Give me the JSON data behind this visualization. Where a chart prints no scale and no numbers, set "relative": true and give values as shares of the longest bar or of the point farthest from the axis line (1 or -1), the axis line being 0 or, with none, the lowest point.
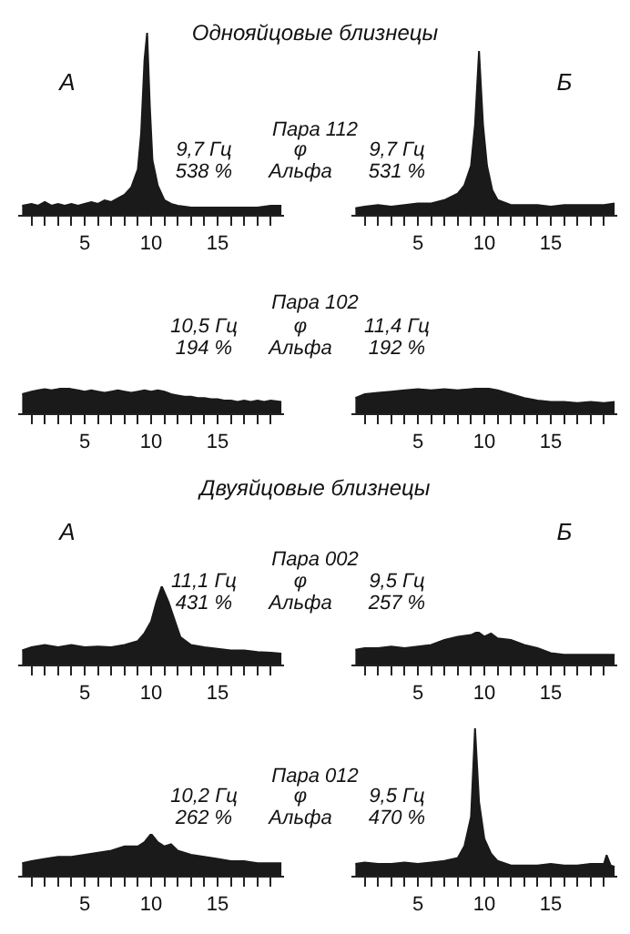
{
  "chart_data": [
    {
      "type": "other",
      "title": "Однояйцовые близнецы"
    },
    {
      "type": "area",
      "title": "А",
      "subtitle": "Пара 112",
      "annotations": [
        "9,7 Гц",
        "538 %",
        "φ",
        "Альфа"
      ],
      "relative": true,
      "color": "#1a1a1a",
      "xlim": [
        0,
        20
      ],
      "xticks": [
        {
          "value": 1,
          "label": null
        },
        {
          "value": 2,
          "label": null
        },
        {
          "value": 3,
          "label": null
        },
        {
          "value": 4,
          "label": null
        },
        5,
        {
          "value": 6,
          "label": null
        },
        {
          "value": 7,
          "label": null
        },
        {
          "value": 8,
          "label": null
        },
        {
          "value": 9,
          "label": null
        },
        10,
        {
          "value": 11,
          "label": null
        },
        {
          "value": 12,
          "label": null
        },
        {
          "value": 13,
          "label": null
        },
        {
          "value": 14,
          "label": null
        },
        15,
        {
          "value": 16,
          "label": null
        },
        {
          "value": 17,
          "label": null
        },
        {
          "value": 18,
          "label": null
        },
        {
          "value": 19,
          "label": null
        }
      ],
      "x": [
        0.3,
        1,
        1.5,
        2,
        2.5,
        3,
        3.5,
        4,
        4.5,
        5,
        5.5,
        6,
        6.5,
        7,
        7.5,
        8,
        8.5,
        9,
        9.25,
        9.5,
        9.7,
        9.9,
        10.1,
        10.5,
        11,
        11.5,
        12,
        13,
        14,
        15,
        16,
        17,
        18,
        19,
        19.8
      ],
      "values": [
        0.05,
        0.06,
        0.05,
        0.07,
        0.05,
        0.06,
        0.05,
        0.06,
        0.05,
        0.06,
        0.07,
        0.06,
        0.08,
        0.07,
        0.09,
        0.11,
        0.15,
        0.25,
        0.45,
        0.85,
        1,
        0.6,
        0.3,
        0.16,
        0.08,
        0.06,
        0.05,
        0.04,
        0.04,
        0.04,
        0.04,
        0.04,
        0.04,
        0.05,
        0.05
      ]
    },
    {
      "type": "area",
      "title": "Б",
      "annotations": [
        "9,7 Гц",
        "531 %"
      ],
      "relative": true,
      "color": "#1a1a1a",
      "xlim": [
        0,
        20
      ],
      "xticks": [
        {
          "value": 1,
          "label": null
        },
        {
          "value": 2,
          "label": null
        },
        {
          "value": 3,
          "label": null
        },
        {
          "value": 4,
          "label": null
        },
        5,
        {
          "value": 6,
          "label": null
        },
        {
          "value": 7,
          "label": null
        },
        {
          "value": 8,
          "label": null
        },
        {
          "value": 9,
          "label": null
        },
        10,
        {
          "value": 11,
          "label": null
        },
        {
          "value": 12,
          "label": null
        },
        {
          "value": 13,
          "label": null
        },
        {
          "value": 14,
          "label": null
        },
        15,
        {
          "value": 16,
          "label": null
        },
        {
          "value": 17,
          "label": null
        },
        {
          "value": 18,
          "label": null
        },
        {
          "value": 19,
          "label": null
        }
      ],
      "x": [
        0.3,
        1,
        2,
        3,
        4,
        5,
        6,
        7,
        8,
        8.5,
        9,
        9.3,
        9.6,
        9.9,
        10.2,
        10.6,
        11,
        12,
        13,
        14,
        15,
        16,
        17,
        18,
        19,
        19.8
      ],
      "values": [
        0.04,
        0.05,
        0.06,
        0.05,
        0.06,
        0.07,
        0.07,
        0.09,
        0.13,
        0.18,
        0.3,
        0.55,
        1,
        0.55,
        0.3,
        0.15,
        0.09,
        0.06,
        0.06,
        0.06,
        0.05,
        0.06,
        0.06,
        0.06,
        0.06,
        0.07
      ]
    },
    {
      "type": "area",
      "subtitle": "Пара 102",
      "annotations": [
        "10,5 Гц",
        "194 %",
        "φ",
        "Альфа"
      ],
      "relative": true,
      "color": "#1a1a1a",
      "xlim": [
        0,
        20
      ],
      "xticks": [
        {
          "value": 1,
          "label": null
        },
        {
          "value": 2,
          "label": null
        },
        {
          "value": 3,
          "label": null
        },
        {
          "value": 4,
          "label": null
        },
        5,
        {
          "value": 6,
          "label": null
        },
        {
          "value": 7,
          "label": null
        },
        {
          "value": 8,
          "label": null
        },
        {
          "value": 9,
          "label": null
        },
        10,
        {
          "value": 11,
          "label": null
        },
        {
          "value": 12,
          "label": null
        },
        {
          "value": 13,
          "label": null
        },
        {
          "value": 14,
          "label": null
        },
        15,
        {
          "value": 16,
          "label": null
        },
        {
          "value": 17,
          "label": null
        },
        {
          "value": 18,
          "label": null
        },
        {
          "value": 19,
          "label": null
        }
      ],
      "x": [
        0.3,
        1,
        1.5,
        2,
        2.5,
        3,
        3.5,
        4,
        4.5,
        5,
        5.5,
        6,
        6.5,
        7,
        7.5,
        8,
        8.5,
        9,
        9.5,
        10,
        10.5,
        11,
        11.5,
        12,
        12.5,
        13,
        13.5,
        14,
        14.5,
        15,
        15.5,
        16,
        16.5,
        17,
        17.5,
        18,
        18.5,
        19,
        19.8
      ],
      "values": [
        0.75,
        0.85,
        0.9,
        0.95,
        0.9,
        0.95,
        1,
        0.95,
        0.9,
        0.85,
        0.9,
        0.85,
        0.8,
        0.85,
        0.9,
        0.85,
        0.8,
        0.85,
        0.9,
        0.85,
        0.9,
        0.85,
        0.75,
        0.7,
        0.65,
        0.65,
        0.6,
        0.6,
        0.55,
        0.55,
        0.5,
        0.5,
        0.45,
        0.5,
        0.45,
        0.5,
        0.45,
        0.5,
        0.45
      ]
    },
    {
      "type": "area",
      "annotations": [
        "11,4 Гц",
        "192 %"
      ],
      "relative": true,
      "color": "#1a1a1a",
      "xlim": [
        0,
        20
      ],
      "xticks": [
        {
          "value": 1,
          "label": null
        },
        {
          "value": 2,
          "label": null
        },
        {
          "value": 3,
          "label": null
        },
        {
          "value": 4,
          "label": null
        },
        5,
        {
          "value": 6,
          "label": null
        },
        {
          "value": 7,
          "label": null
        },
        {
          "value": 8,
          "label": null
        },
        {
          "value": 9,
          "label": null
        },
        10,
        {
          "value": 11,
          "label": null
        },
        {
          "value": 12,
          "label": null
        },
        {
          "value": 13,
          "label": null
        },
        {
          "value": 14,
          "label": null
        },
        15,
        {
          "value": 16,
          "label": null
        },
        {
          "value": 17,
          "label": null
        },
        {
          "value": 18,
          "label": null
        },
        {
          "value": 19,
          "label": null
        }
      ],
      "x": [
        0.3,
        1,
        2,
        3,
        4,
        5,
        6,
        7,
        8,
        9,
        10,
        11,
        12,
        13,
        14,
        15,
        16,
        17,
        18,
        19,
        19.8
      ],
      "values": [
        0.6,
        0.75,
        0.8,
        0.85,
        0.9,
        0.95,
        0.9,
        0.95,
        0.9,
        0.95,
        1,
        0.9,
        0.75,
        0.6,
        0.5,
        0.45,
        0.45,
        0.4,
        0.45,
        0.4,
        0.45
      ]
    },
    {
      "type": "other",
      "title": "Двуяйцовые близнецы"
    },
    {
      "type": "area",
      "title": "А",
      "subtitle": "Пара 002",
      "annotations": [
        "11,1 Гц",
        "431 %",
        "φ",
        "Альфа"
      ],
      "relative": true,
      "color": "#1a1a1a",
      "xlim": [
        0,
        20
      ],
      "xticks": [
        {
          "value": 1,
          "label": null
        },
        {
          "value": 2,
          "label": null
        },
        {
          "value": 3,
          "label": null
        },
        {
          "value": 4,
          "label": null
        },
        5,
        {
          "value": 6,
          "label": null
        },
        {
          "value": 7,
          "label": null
        },
        {
          "value": 8,
          "label": null
        },
        {
          "value": 9,
          "label": null
        },
        10,
        {
          "value": 11,
          "label": null
        },
        {
          "value": 12,
          "label": null
        },
        {
          "value": 13,
          "label": null
        },
        {
          "value": 14,
          "label": null
        },
        15,
        {
          "value": 16,
          "label": null
        },
        {
          "value": 17,
          "label": null
        },
        {
          "value": 18,
          "label": null
        },
        {
          "value": 19,
          "label": null
        }
      ],
      "x": [
        0.3,
        1,
        2,
        3,
        4,
        5,
        6,
        7,
        8,
        9,
        9.5,
        10,
        10.4,
        10.8,
        11.3,
        11.7,
        12.2,
        13,
        14,
        15,
        16,
        17,
        18,
        19,
        19.8
      ],
      "values": [
        0.18,
        0.22,
        0.25,
        0.22,
        0.25,
        0.22,
        0.23,
        0.22,
        0.25,
        0.3,
        0.4,
        0.55,
        0.8,
        1,
        0.8,
        0.6,
        0.35,
        0.25,
        0.22,
        0.2,
        0.18,
        0.18,
        0.16,
        0.15,
        0.14
      ]
    },
    {
      "type": "area",
      "title": "Б",
      "annotations": [
        "9,5 Гц",
        "257 %"
      ],
      "relative": true,
      "color": "#1a1a1a",
      "xlim": [
        0,
        20
      ],
      "xticks": [
        {
          "value": 1,
          "label": null
        },
        {
          "value": 2,
          "label": null
        },
        {
          "value": 3,
          "label": null
        },
        {
          "value": 4,
          "label": null
        },
        5,
        {
          "value": 6,
          "label": null
        },
        {
          "value": 7,
          "label": null
        },
        {
          "value": 8,
          "label": null
        },
        {
          "value": 9,
          "label": null
        },
        10,
        {
          "value": 11,
          "label": null
        },
        {
          "value": 12,
          "label": null
        },
        {
          "value": 13,
          "label": null
        },
        {
          "value": 14,
          "label": null
        },
        15,
        {
          "value": 16,
          "label": null
        },
        {
          "value": 17,
          "label": null
        },
        {
          "value": 18,
          "label": null
        },
        {
          "value": 19,
          "label": null
        }
      ],
      "x": [
        0.3,
        1,
        2,
        3,
        4,
        5,
        6,
        7,
        8,
        9,
        9.5,
        10,
        10.5,
        11,
        12,
        13,
        14,
        15,
        16,
        17,
        18,
        19,
        19.8
      ],
      "values": [
        0.45,
        0.5,
        0.5,
        0.55,
        0.5,
        0.55,
        0.6,
        0.75,
        0.85,
        0.9,
        1,
        0.85,
        0.95,
        0.8,
        0.75,
        0.6,
        0.5,
        0.35,
        0.3,
        0.3,
        0.3,
        0.3,
        0.3
      ]
    },
    {
      "type": "area",
      "subtitle": "Пара 012",
      "annotations": [
        "10,2 Гц",
        "262 %",
        "φ",
        "Альфа"
      ],
      "relative": true,
      "color": "#1a1a1a",
      "xlim": [
        0,
        20
      ],
      "xticks": [
        {
          "value": 1,
          "label": null
        },
        {
          "value": 2,
          "label": null
        },
        {
          "value": 3,
          "label": null
        },
        {
          "value": 4,
          "label": null
        },
        5,
        {
          "value": 6,
          "label": null
        },
        {
          "value": 7,
          "label": null
        },
        {
          "value": 8,
          "label": null
        },
        {
          "value": 9,
          "label": null
        },
        10,
        {
          "value": 11,
          "label": null
        },
        {
          "value": 12,
          "label": null
        },
        {
          "value": 13,
          "label": null
        },
        {
          "value": 14,
          "label": null
        },
        15,
        {
          "value": 16,
          "label": null
        },
        {
          "value": 17,
          "label": null
        },
        {
          "value": 18,
          "label": null
        },
        {
          "value": 19,
          "label": null
        }
      ],
      "x": [
        0.3,
        1,
        2,
        3,
        4,
        5,
        6,
        7,
        8,
        9,
        9.5,
        10,
        10.5,
        11,
        11.5,
        12,
        13,
        14,
        15,
        16,
        17,
        18,
        19,
        19.8
      ],
      "values": [
        0.3,
        0.35,
        0.4,
        0.45,
        0.45,
        0.5,
        0.55,
        0.6,
        0.7,
        0.7,
        0.8,
        1,
        0.8,
        0.7,
        0.75,
        0.6,
        0.5,
        0.45,
        0.4,
        0.35,
        0.35,
        0.3,
        0.3,
        0.3
      ]
    },
    {
      "type": "area",
      "annotations": [
        "9,5 Гц",
        "470 %"
      ],
      "relative": true,
      "color": "#1a1a1a",
      "xlim": [
        0,
        20
      ],
      "xticks": [
        {
          "value": 1,
          "label": null
        },
        {
          "value": 2,
          "label": null
        },
        {
          "value": 3,
          "label": null
        },
        {
          "value": 4,
          "label": null
        },
        5,
        {
          "value": 6,
          "label": null
        },
        {
          "value": 7,
          "label": null
        },
        {
          "value": 8,
          "label": null
        },
        {
          "value": 9,
          "label": null
        },
        10,
        {
          "value": 11,
          "label": null
        },
        {
          "value": 12,
          "label": null
        },
        {
          "value": 13,
          "label": null
        },
        {
          "value": 14,
          "label": null
        },
        15,
        {
          "value": 16,
          "label": null
        },
        {
          "value": 17,
          "label": null
        },
        {
          "value": 18,
          "label": null
        },
        {
          "value": 19,
          "label": null
        }
      ],
      "x": [
        0.3,
        1,
        2,
        3,
        4,
        5,
        6,
        7,
        8,
        8.5,
        9,
        9.3,
        9.6,
        10,
        10.5,
        11,
        12,
        13,
        14,
        15,
        16,
        17,
        18,
        19,
        19.2,
        19.5,
        19.8
      ],
      "values": [
        0.08,
        0.09,
        0.08,
        0.08,
        0.09,
        0.08,
        0.09,
        0.1,
        0.12,
        0.2,
        0.4,
        1,
        0.5,
        0.25,
        0.15,
        0.1,
        0.07,
        0.07,
        0.07,
        0.08,
        0.07,
        0.07,
        0.08,
        0.08,
        0.14,
        0.07,
        0.06
      ]
    }
  ]
}
